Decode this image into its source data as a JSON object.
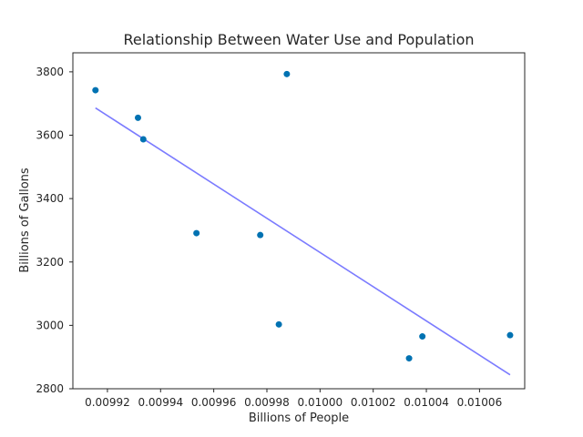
{
  "chart_data": {
    "type": "scatter",
    "title": "Relationship Between Water Use and Population",
    "xlabel": "Billions of People",
    "ylabel": "Billions of Gallons",
    "xlim": [
      0.009907,
      0.010077
    ],
    "ylim": [
      2800,
      3860
    ],
    "xticks": [
      0.00992,
      0.00994,
      0.00996,
      0.00998,
      0.01,
      0.01002,
      0.01004,
      0.01006
    ],
    "xtick_labels": [
      "0.00992",
      "0.00994",
      "0.00996",
      "0.00998",
      "0.01000",
      "0.01002",
      "0.01004",
      "0.01006"
    ],
    "yticks": [
      2800,
      3000,
      3200,
      3400,
      3600,
      3800
    ],
    "ytick_labels": [
      "2800",
      "3000",
      "3200",
      "3400",
      "3600",
      "3800"
    ],
    "grid": false,
    "points": [
      {
        "x": 0.0099155,
        "y": 3742
      },
      {
        "x": 0.0099315,
        "y": 3655
      },
      {
        "x": 0.0099335,
        "y": 3587
      },
      {
        "x": 0.0099535,
        "y": 3291
      },
      {
        "x": 0.0099775,
        "y": 3285
      },
      {
        "x": 0.0099845,
        "y": 3003
      },
      {
        "x": 0.0099875,
        "y": 3793
      },
      {
        "x": 0.0100335,
        "y": 2896
      },
      {
        "x": 0.0100385,
        "y": 2965
      },
      {
        "x": 0.0100715,
        "y": 2969
      }
    ],
    "trend_line": {
      "x": [
        0.0099155,
        0.0100715
      ],
      "y": [
        3686,
        2844
      ]
    },
    "colors": {
      "points": "#0072b2",
      "trend_line": "#7b7bff",
      "axes": "#262626"
    }
  }
}
